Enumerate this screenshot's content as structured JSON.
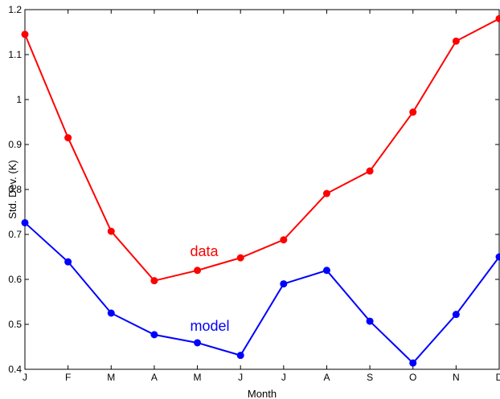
{
  "chart_data": {
    "type": "line",
    "xlabel": "Month",
    "ylabel": "Std. Dev. (K)",
    "categories": [
      "J",
      "F",
      "M",
      "A",
      "M",
      "J",
      "J",
      "A",
      "S",
      "O",
      "N",
      "D"
    ],
    "ylim": [
      0.4,
      1.2
    ],
    "yticks": [
      "0.4",
      "0.5",
      "0.6",
      "0.7",
      "0.8",
      "0.9",
      "1",
      "1.1",
      "1.2"
    ],
    "grid": false,
    "series": [
      {
        "name": "data",
        "color": "#ff0000",
        "values": [
          1.145,
          0.915,
          0.707,
          0.597,
          0.62,
          0.648,
          0.688,
          0.791,
          0.841,
          0.972,
          1.13,
          1.18
        ],
        "label_position": "above line between A and J"
      },
      {
        "name": "model",
        "color": "#0000ff",
        "values": [
          0.726,
          0.639,
          0.525,
          0.477,
          0.459,
          0.431,
          0.59,
          0.62,
          0.507,
          0.414,
          0.522,
          0.65
        ],
        "label_position": "above line between A and J"
      }
    ]
  }
}
